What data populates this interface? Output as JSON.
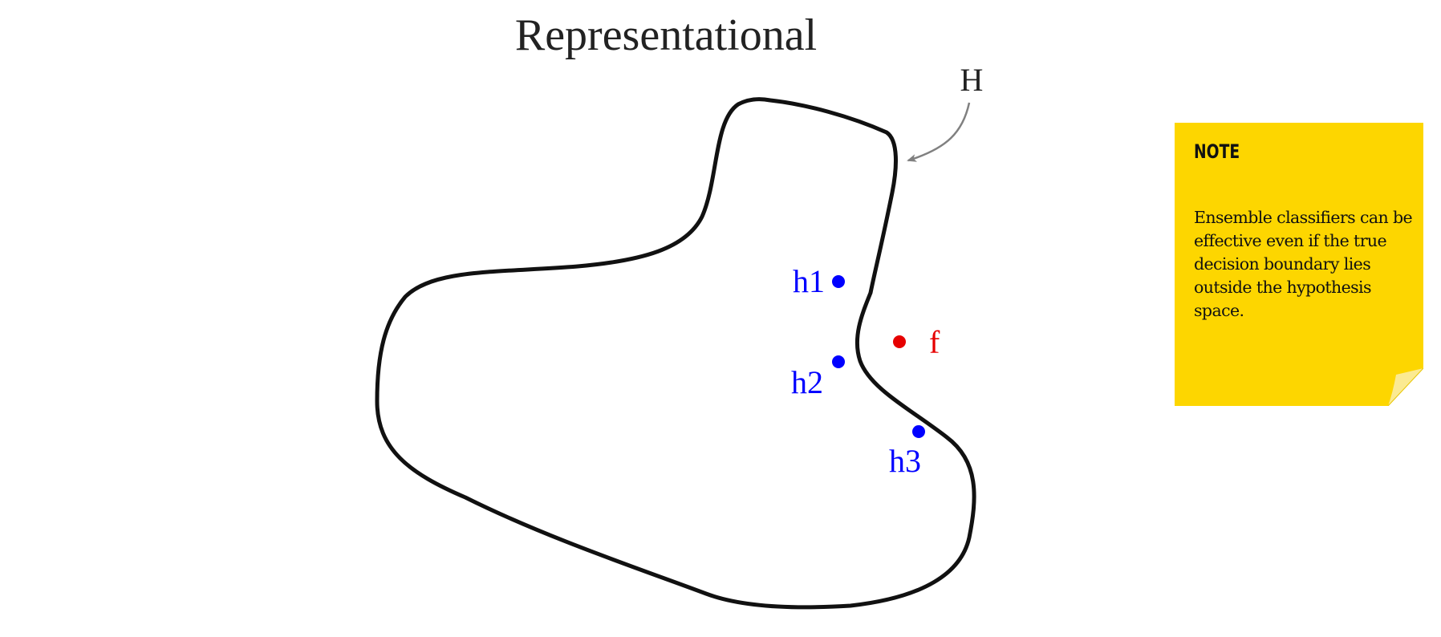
{
  "diagram": {
    "title": "Representational",
    "hypothesis_space_label": "H",
    "hypotheses": [
      {
        "label": "h1",
        "color": "#0000FF"
      },
      {
        "label": "h2",
        "color": "#0000FF"
      },
      {
        "label": "h3",
        "color": "#0000FF"
      }
    ],
    "true_function": {
      "label": "f",
      "color": "#E60000"
    }
  },
  "note": {
    "heading": "NOTE",
    "body": "Ensemble classifiers can be effective even if the true decision boundary lies outside the hypothesis space.",
    "background": "#FDD600"
  }
}
